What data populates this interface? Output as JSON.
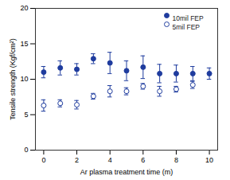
{
  "chart_data": {
    "type": "scatter",
    "x_label": "Ar plasma treatment time (m)",
    "y_label": "Tensile strength (Kgf/cm²)",
    "xlim": [
      -0.5,
      10.5
    ],
    "xticks": [
      0,
      2,
      4,
      6,
      8,
      10
    ],
    "ylim": [
      0,
      20
    ],
    "yticks": [
      0,
      5,
      10,
      15,
      20
    ],
    "grid": false,
    "legend": "top-right",
    "series": [
      {
        "name": "10mil FEP",
        "color": "#1f3c9e",
        "marker": "filled",
        "x": [
          0,
          1,
          2,
          3,
          4,
          5,
          6,
          7,
          8,
          9,
          10
        ],
        "values": [
          11.0,
          11.6,
          11.4,
          12.9,
          12.3,
          11.2,
          11.7,
          10.8,
          10.8,
          10.8,
          10.8
        ],
        "errors": [
          0.8,
          1.0,
          0.8,
          0.7,
          1.5,
          1.4,
          1.6,
          1.3,
          1.2,
          1.0,
          0.8
        ]
      },
      {
        "name": "5mil FEP",
        "color": "#1f3c9e",
        "marker": "open",
        "x": [
          0,
          1,
          2,
          3,
          4,
          5,
          6,
          7,
          8,
          9
        ],
        "values": [
          6.3,
          6.6,
          6.4,
          7.6,
          8.3,
          8.3,
          9.0,
          8.3,
          8.6,
          9.2
        ],
        "errors": [
          0.8,
          0.5,
          0.6,
          0.4,
          0.8,
          0.5,
          0.4,
          0.7,
          0.4,
          0.5
        ]
      }
    ]
  }
}
